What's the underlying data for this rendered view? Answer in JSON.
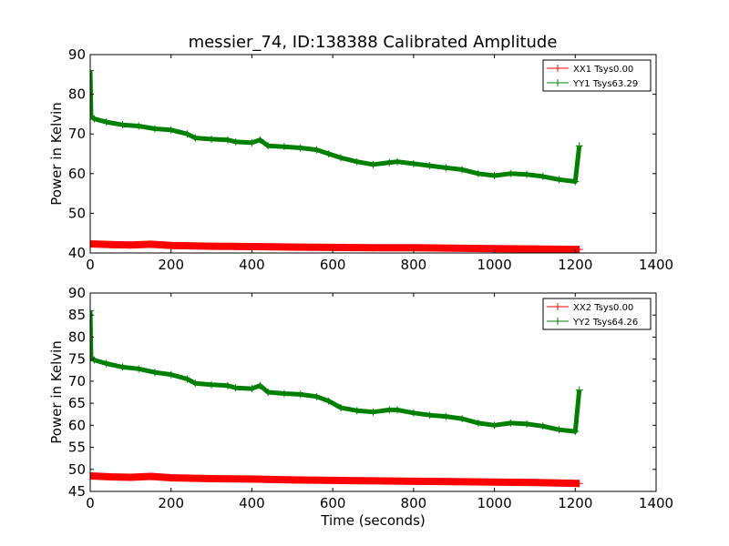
{
  "title": "messier_74, ID:138388 Calibrated Amplitude",
  "chart_data": [
    {
      "type": "line",
      "ylabel": "Power in Kelvin",
      "xlabel": "",
      "xlim": [
        0,
        1400
      ],
      "ylim": [
        40,
        90
      ],
      "xticks": [
        0,
        200,
        400,
        600,
        800,
        1000,
        1200,
        1400
      ],
      "yticks": [
        40,
        50,
        60,
        70,
        80,
        90
      ],
      "legend_position": "top-right",
      "grid": false,
      "series": [
        {
          "name": "XX1 Tsys0.00",
          "color": "#ff0000",
          "marker": "+",
          "x": [
            0,
            50,
            100,
            150,
            200,
            300,
            400,
            500,
            600,
            700,
            800,
            900,
            1000,
            1100,
            1210
          ],
          "y": [
            42.3,
            42.1,
            42.0,
            42.2,
            41.9,
            41.7,
            41.6,
            41.5,
            41.4,
            41.3,
            41.3,
            41.2,
            41.1,
            41.0,
            40.9
          ]
        },
        {
          "name": "YY1 Tsys63.29",
          "color": "#008000",
          "marker": "+",
          "x": [
            0,
            2,
            10,
            40,
            80,
            120,
            160,
            200,
            240,
            260,
            300,
            340,
            360,
            400,
            420,
            440,
            480,
            520,
            560,
            590,
            620,
            660,
            700,
            740,
            760,
            800,
            840,
            880,
            920,
            960,
            1000,
            1040,
            1080,
            1120,
            1160,
            1200,
            1210
          ],
          "y": [
            86,
            74.5,
            73.8,
            73.0,
            72.3,
            72.0,
            71.3,
            71.0,
            70.0,
            69.0,
            68.7,
            68.5,
            68.0,
            67.8,
            68.5,
            67.0,
            66.8,
            66.5,
            66.0,
            65.0,
            64.0,
            63.0,
            62.3,
            62.8,
            63.0,
            62.5,
            62.0,
            61.5,
            61.0,
            60.0,
            59.5,
            60.0,
            59.8,
            59.3,
            58.5,
            58.0,
            67.0
          ]
        }
      ]
    },
    {
      "type": "line",
      "ylabel": "Power in Kelvin",
      "xlabel": "Time (seconds)",
      "xlim": [
        0,
        1400
      ],
      "ylim": [
        45,
        90
      ],
      "xticks": [
        0,
        200,
        400,
        600,
        800,
        1000,
        1200,
        1400
      ],
      "yticks": [
        45,
        50,
        55,
        60,
        65,
        70,
        75,
        80,
        85,
        90
      ],
      "legend_position": "top-right",
      "grid": false,
      "series": [
        {
          "name": "XX2 Tsys0.00",
          "color": "#ff0000",
          "marker": "+",
          "x": [
            0,
            50,
            100,
            150,
            200,
            300,
            400,
            500,
            600,
            700,
            800,
            900,
            1000,
            1100,
            1210
          ],
          "y": [
            48.5,
            48.3,
            48.2,
            48.4,
            48.1,
            47.9,
            47.8,
            47.6,
            47.5,
            47.4,
            47.3,
            47.2,
            47.1,
            47.0,
            46.8
          ]
        },
        {
          "name": "YY2 Tsys64.26",
          "color": "#008000",
          "marker": "+",
          "x": [
            0,
            2,
            10,
            40,
            80,
            120,
            160,
            200,
            240,
            260,
            300,
            340,
            360,
            400,
            420,
            440,
            480,
            520,
            560,
            590,
            620,
            660,
            700,
            740,
            760,
            800,
            840,
            880,
            920,
            960,
            1000,
            1040,
            1080,
            1120,
            1160,
            1200,
            1210
          ],
          "y": [
            86,
            75.3,
            74.8,
            74.0,
            73.2,
            72.8,
            72.0,
            71.5,
            70.5,
            69.5,
            69.2,
            69.0,
            68.5,
            68.3,
            69.0,
            67.5,
            67.2,
            67.0,
            66.5,
            65.5,
            64.0,
            63.3,
            63.0,
            63.5,
            63.5,
            62.8,
            62.3,
            62.0,
            61.5,
            60.5,
            60.0,
            60.5,
            60.3,
            59.8,
            59.0,
            58.6,
            68.0
          ]
        }
      ]
    }
  ]
}
